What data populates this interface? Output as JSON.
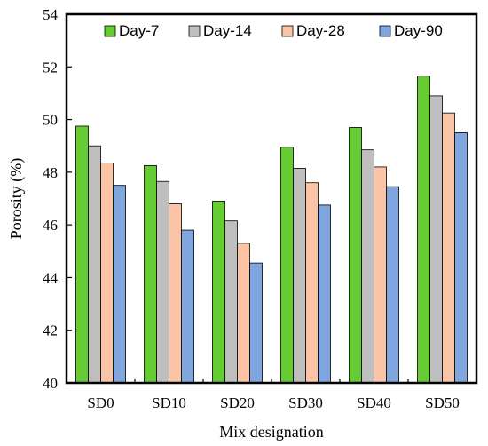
{
  "chart_data": {
    "type": "bar",
    "xlabel": "Mix designation",
    "ylabel": "Porosity (%)",
    "ylim": [
      40,
      54
    ],
    "yticks": [
      40,
      42,
      44,
      46,
      48,
      50,
      52,
      54
    ],
    "grid": false,
    "legend_position": "top",
    "categories": [
      "SD0",
      "SD10",
      "SD20",
      "SD30",
      "SD40",
      "SD50"
    ],
    "series": [
      {
        "name": "Day-7",
        "color": "#66cc33",
        "values": [
          49.75,
          48.25,
          46.9,
          48.95,
          49.7,
          51.65
        ]
      },
      {
        "name": "Day-14",
        "color": "#bfbfbf",
        "values": [
          49.0,
          47.65,
          46.15,
          48.15,
          48.85,
          50.9
        ]
      },
      {
        "name": "Day-28",
        "color": "#fbc5a5",
        "values": [
          48.35,
          46.8,
          45.3,
          47.6,
          48.2,
          50.25
        ]
      },
      {
        "name": "Day-90",
        "color": "#7fa6de",
        "values": [
          47.5,
          45.8,
          44.55,
          46.75,
          47.45,
          49.5
        ]
      }
    ]
  }
}
